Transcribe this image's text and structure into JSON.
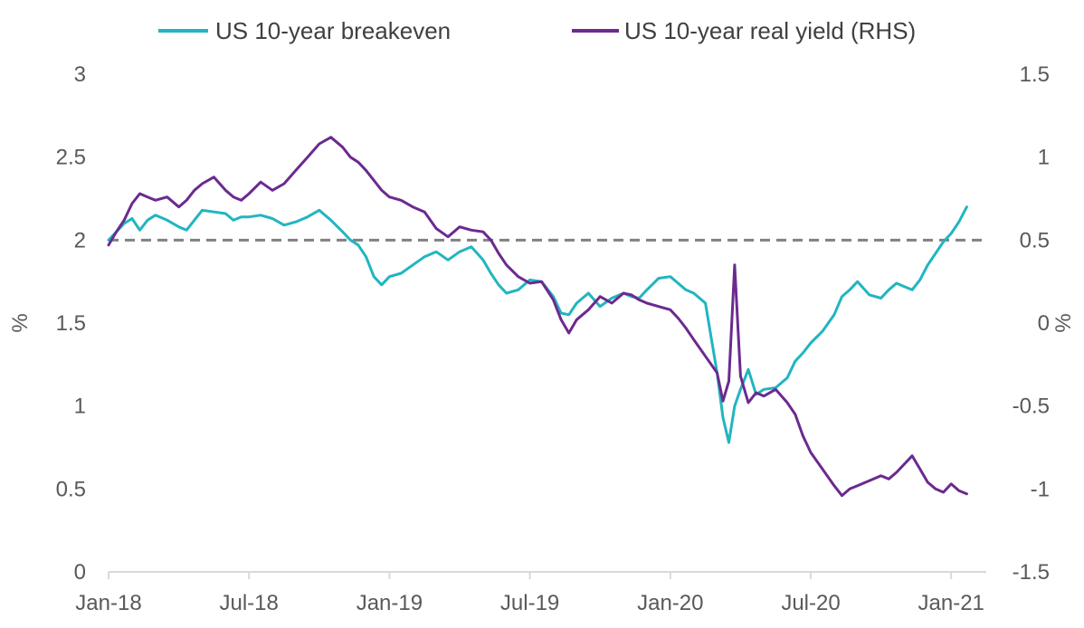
{
  "chart_data": {
    "type": "line",
    "title": "",
    "xlabel": "",
    "ylabel": "%",
    "ylabel_right": "%",
    "x_tick_labels": [
      "Jan-18",
      "Jul-18",
      "Jan-19",
      "Jul-19",
      "Jan-20",
      "Jul-20",
      "Jan-21"
    ],
    "x_range_months": [
      0,
      37.5
    ],
    "ylim_left": [
      0,
      3
    ],
    "ylim_right": [
      -1.5,
      1.5
    ],
    "yticks_left": [
      "0",
      "0.5",
      "1",
      "1.5",
      "2",
      "2.5",
      "3"
    ],
    "yticks_right": [
      "-1.5",
      "-1",
      "-0.5",
      "0",
      "0.5",
      "1",
      "1.5"
    ],
    "grid": false,
    "legend_position": "top",
    "reference_line": {
      "value": 2,
      "axis": "left",
      "style": "dashed",
      "color": "#808080"
    },
    "colors": {
      "breakeven": "#21B5C1",
      "real_yield": "#6B2A8F",
      "axis": "#D9D9D9",
      "reference": "#808080"
    },
    "series": [
      {
        "name": "US 10-year breakeven",
        "axis": "left",
        "points": [
          [
            "Jan-18",
            2.0
          ],
          [
            "Jan-18",
            2.05
          ],
          [
            "Jan-18",
            2.1
          ],
          [
            "Feb-18",
            2.13
          ],
          [
            "Feb-18",
            2.06
          ],
          [
            "Feb-18",
            2.12
          ],
          [
            "Mar-18",
            2.15
          ],
          [
            "Mar-18",
            2.12
          ],
          [
            "Apr-18",
            2.08
          ],
          [
            "Apr-18",
            2.06
          ],
          [
            "Apr-18",
            2.12
          ],
          [
            "May-18",
            2.18
          ],
          [
            "May-18",
            2.17
          ],
          [
            "Jun-18",
            2.16
          ],
          [
            "Jun-18",
            2.12
          ],
          [
            "Jun-18",
            2.14
          ],
          [
            "Jul-18",
            2.14
          ],
          [
            "Jul-18",
            2.15
          ],
          [
            "Aug-18",
            2.13
          ],
          [
            "Aug-18",
            2.09
          ],
          [
            "Sep-18",
            2.11
          ],
          [
            "Sep-18",
            2.14
          ],
          [
            "Oct-18",
            2.18
          ],
          [
            "Oct-18",
            2.12
          ],
          [
            "Nov-18",
            2.05
          ],
          [
            "Nov-18",
            2.0
          ],
          [
            "Nov-18",
            1.97
          ],
          [
            "Dec-18",
            1.9
          ],
          [
            "Dec-18",
            1.78
          ],
          [
            "Dec-18",
            1.73
          ],
          [
            "Jan-19",
            1.78
          ],
          [
            "Jan-19",
            1.8
          ],
          [
            "Feb-19",
            1.85
          ],
          [
            "Feb-19",
            1.9
          ],
          [
            "Mar-19",
            1.93
          ],
          [
            "Mar-19",
            1.88
          ],
          [
            "Apr-19",
            1.93
          ],
          [
            "Apr-19",
            1.96
          ],
          [
            "May-19",
            1.88
          ],
          [
            "May-19",
            1.8
          ],
          [
            "May-19",
            1.73
          ],
          [
            "Jun-19",
            1.68
          ],
          [
            "Jun-19",
            1.7
          ],
          [
            "Jul-19",
            1.76
          ],
          [
            "Jul-19",
            1.75
          ],
          [
            "Aug-19",
            1.66
          ],
          [
            "Aug-19",
            1.56
          ],
          [
            "Aug-19",
            1.55
          ],
          [
            "Sep-19",
            1.62
          ],
          [
            "Sep-19",
            1.68
          ],
          [
            "Oct-19",
            1.6
          ],
          [
            "Oct-19",
            1.65
          ],
          [
            "Nov-19",
            1.68
          ],
          [
            "Nov-19",
            1.66
          ],
          [
            "Nov-19",
            1.65
          ],
          [
            "Dec-19",
            1.7
          ],
          [
            "Dec-19",
            1.77
          ],
          [
            "Jan-20",
            1.78
          ],
          [
            "Jan-20",
            1.74
          ],
          [
            "Jan-20",
            1.7
          ],
          [
            "Feb-20",
            1.68
          ],
          [
            "Feb-20",
            1.62
          ],
          [
            "Mar-20",
            1.2
          ],
          [
            "Mar-20",
            0.93
          ],
          [
            "Mar-20",
            0.78
          ],
          [
            "Mar-20",
            1.0
          ],
          [
            "Apr-20",
            1.1
          ],
          [
            "Apr-20",
            1.22
          ],
          [
            "Apr-20",
            1.07
          ],
          [
            "May-20",
            1.1
          ],
          [
            "May-20",
            1.11
          ],
          [
            "Jun-20",
            1.17
          ],
          [
            "Jun-20",
            1.27
          ],
          [
            "Jun-20",
            1.32
          ],
          [
            "Jul-20",
            1.38
          ],
          [
            "Jul-20",
            1.45
          ],
          [
            "Aug-20",
            1.55
          ],
          [
            "Aug-20",
            1.66
          ],
          [
            "Aug-20",
            1.7
          ],
          [
            "Sep-20",
            1.75
          ],
          [
            "Sep-20",
            1.67
          ],
          [
            "Oct-20",
            1.65
          ],
          [
            "Oct-20",
            1.7
          ],
          [
            "Oct-20",
            1.74
          ],
          [
            "Nov-20",
            1.72
          ],
          [
            "Nov-20",
            1.7
          ],
          [
            "Nov-20",
            1.76
          ],
          [
            "Dec-20",
            1.85
          ],
          [
            "Dec-20",
            1.92
          ],
          [
            "Dec-20",
            1.99
          ],
          [
            "Jan-21",
            2.04
          ],
          [
            "Jan-21",
            2.11
          ],
          [
            "Jan-21",
            2.2
          ]
        ]
      },
      {
        "name": "US 10-year real yield (RHS)",
        "axis": "right",
        "points": [
          [
            "Jan-18",
            0.47
          ],
          [
            "Jan-18",
            0.55
          ],
          [
            "Jan-18",
            0.62
          ],
          [
            "Feb-18",
            0.72
          ],
          [
            "Feb-18",
            0.78
          ],
          [
            "Feb-18",
            0.76
          ],
          [
            "Mar-18",
            0.74
          ],
          [
            "Mar-18",
            0.76
          ],
          [
            "Apr-18",
            0.7
          ],
          [
            "Apr-18",
            0.74
          ],
          [
            "Apr-18",
            0.8
          ],
          [
            "May-18",
            0.84
          ],
          [
            "May-18",
            0.88
          ],
          [
            "Jun-18",
            0.8
          ],
          [
            "Jun-18",
            0.76
          ],
          [
            "Jun-18",
            0.74
          ],
          [
            "Jul-18",
            0.78
          ],
          [
            "Jul-18",
            0.85
          ],
          [
            "Aug-18",
            0.8
          ],
          [
            "Aug-18",
            0.84
          ],
          [
            "Sep-18",
            0.92
          ],
          [
            "Sep-18",
            1.0
          ],
          [
            "Oct-18",
            1.08
          ],
          [
            "Oct-18",
            1.12
          ],
          [
            "Nov-18",
            1.06
          ],
          [
            "Nov-18",
            1.0
          ],
          [
            "Nov-18",
            0.97
          ],
          [
            "Dec-18",
            0.92
          ],
          [
            "Dec-18",
            0.86
          ],
          [
            "Dec-18",
            0.8
          ],
          [
            "Jan-19",
            0.76
          ],
          [
            "Jan-19",
            0.74
          ],
          [
            "Feb-19",
            0.7
          ],
          [
            "Feb-19",
            0.67
          ],
          [
            "Mar-19",
            0.57
          ],
          [
            "Mar-19",
            0.52
          ],
          [
            "Apr-19",
            0.58
          ],
          [
            "Apr-19",
            0.56
          ],
          [
            "May-19",
            0.55
          ],
          [
            "May-19",
            0.5
          ],
          [
            "May-19",
            0.42
          ],
          [
            "Jun-19",
            0.35
          ],
          [
            "Jun-19",
            0.28
          ],
          [
            "Jul-19",
            0.24
          ],
          [
            "Jul-19",
            0.25
          ],
          [
            "Aug-19",
            0.14
          ],
          [
            "Aug-19",
            0.02
          ],
          [
            "Aug-19",
            -0.06
          ],
          [
            "Sep-19",
            0.02
          ],
          [
            "Sep-19",
            0.08
          ],
          [
            "Oct-19",
            0.16
          ],
          [
            "Oct-19",
            0.12
          ],
          [
            "Nov-19",
            0.18
          ],
          [
            "Nov-19",
            0.17
          ],
          [
            "Nov-19",
            0.14
          ],
          [
            "Dec-19",
            0.12
          ],
          [
            "Dec-19",
            0.1
          ],
          [
            "Jan-20",
            0.08
          ],
          [
            "Jan-20",
            0.03
          ],
          [
            "Jan-20",
            -0.03
          ],
          [
            "Feb-20",
            -0.1
          ],
          [
            "Feb-20",
            -0.2
          ],
          [
            "Mar-20",
            -0.3
          ],
          [
            "Mar-20",
            -0.47
          ],
          [
            "Mar-20",
            -0.35
          ],
          [
            "Mar-20",
            0.35
          ],
          [
            "Apr-20",
            -0.32
          ],
          [
            "Apr-20",
            -0.48
          ],
          [
            "Apr-20",
            -0.42
          ],
          [
            "May-20",
            -0.44
          ],
          [
            "May-20",
            -0.4
          ],
          [
            "Jun-20",
            -0.48
          ],
          [
            "Jun-20",
            -0.55
          ],
          [
            "Jun-20",
            -0.68
          ],
          [
            "Jul-20",
            -0.78
          ],
          [
            "Jul-20",
            -0.88
          ],
          [
            "Aug-20",
            -0.98
          ],
          [
            "Aug-20",
            -1.04
          ],
          [
            "Aug-20",
            -1.0
          ],
          [
            "Sep-20",
            -0.98
          ],
          [
            "Sep-20",
            -0.95
          ],
          [
            "Oct-20",
            -0.92
          ],
          [
            "Oct-20",
            -0.94
          ],
          [
            "Oct-20",
            -0.9
          ],
          [
            "Nov-20",
            -0.85
          ],
          [
            "Nov-20",
            -0.8
          ],
          [
            "Nov-20",
            -0.88
          ],
          [
            "Dec-20",
            -0.96
          ],
          [
            "Dec-20",
            -1.0
          ],
          [
            "Dec-20",
            -1.02
          ],
          [
            "Jan-21",
            -0.97
          ],
          [
            "Jan-21",
            -1.01
          ],
          [
            "Jan-21",
            -1.03
          ]
        ]
      }
    ]
  }
}
